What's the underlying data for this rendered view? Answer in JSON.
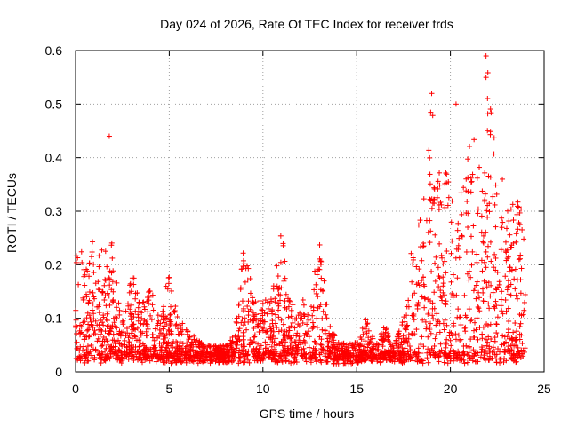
{
  "chart_data": {
    "type": "scatter",
    "title": "Day 024 of 2026, Rate Of TEC Index for receiver trds",
    "xlabel": "GPS time / hours",
    "ylabel": "ROTI / TECUs",
    "xlim": [
      0,
      25
    ],
    "ylim": [
      0,
      0.6
    ],
    "xticks": [
      "0",
      "5",
      "10",
      "15",
      "20",
      "25"
    ],
    "yticks": [
      "0",
      "0.1",
      "0.2",
      "0.3",
      "0.4",
      "0.5",
      "0.6"
    ],
    "grid": true,
    "marker": "+",
    "color": "#ff0000",
    "series": [
      {
        "envelope_hours": [
          0,
          0.2,
          0.5,
          1,
          1.5,
          2,
          2.5,
          3,
          3.5,
          4,
          4.5,
          5,
          5.5,
          6,
          6.5,
          7,
          7.5,
          8,
          8.5,
          9,
          9.5,
          10,
          10.5,
          11,
          11.5,
          12,
          12.5,
          13,
          13.5,
          14,
          14.5,
          15,
          15.5,
          16,
          16.5,
          17,
          17.5,
          18,
          18.5,
          19,
          19.5,
          20,
          20.5,
          21,
          21.5,
          22,
          22.5,
          23,
          23.5,
          24
        ],
        "envelope_roti": [
          0.25,
          0.25,
          0.2,
          0.26,
          0.22,
          0.25,
          0.1,
          0.2,
          0.12,
          0.18,
          0.1,
          0.2,
          0.1,
          0.08,
          0.06,
          0.05,
          0.05,
          0.05,
          0.07,
          0.25,
          0.14,
          0.13,
          0.15,
          0.27,
          0.12,
          0.15,
          0.12,
          0.25,
          0.1,
          0.06,
          0.05,
          0.06,
          0.1,
          0.05,
          0.09,
          0.05,
          0.1,
          0.25,
          0.3,
          0.52,
          0.35,
          0.4,
          0.33,
          0.45,
          0.42,
          0.59,
          0.4,
          0.33,
          0.33,
          0.3
        ],
        "outliers": [
          {
            "x": 1.8,
            "y": 0.44
          },
          {
            "x": 19.0,
            "y": 0.52
          },
          {
            "x": 20.3,
            "y": 0.5
          },
          {
            "x": 21.9,
            "y": 0.59
          },
          {
            "x": 21.9,
            "y": 0.55
          }
        ]
      }
    ]
  }
}
